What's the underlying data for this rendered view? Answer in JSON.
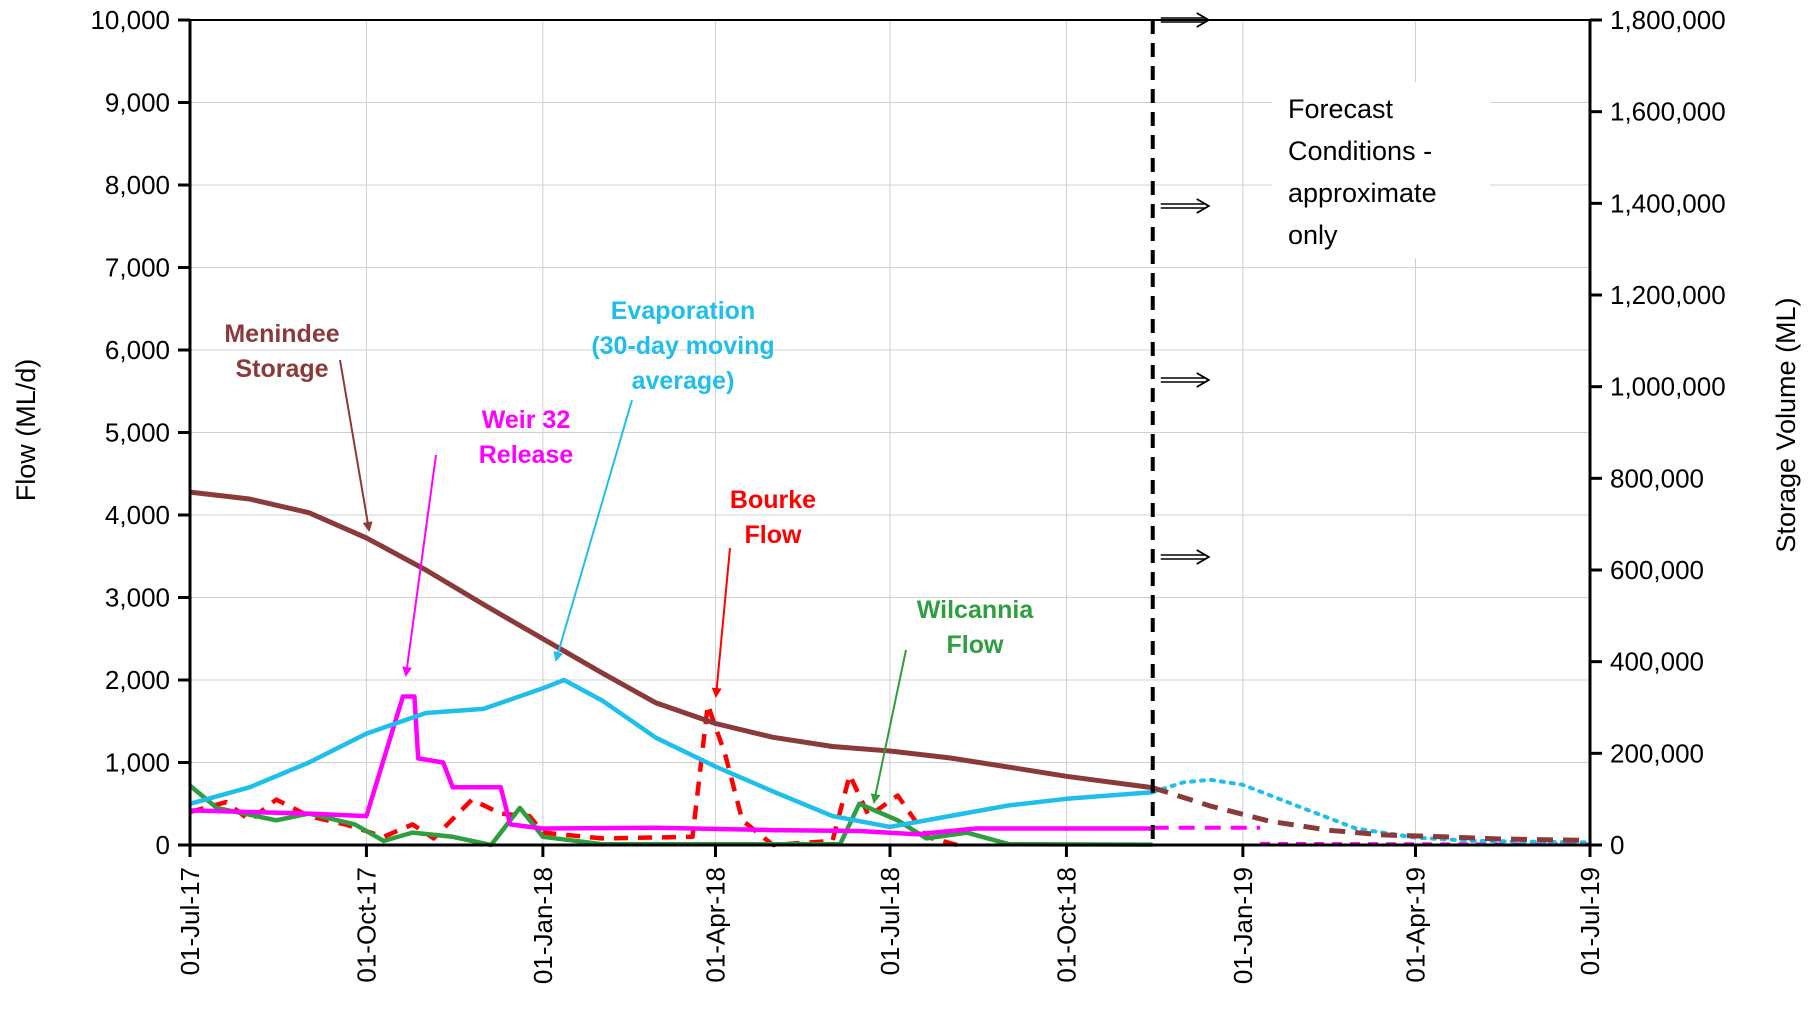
{
  "chart_data": {
    "type": "line",
    "ylabel": "Flow (ML/d)",
    "y2label": "Storage Volume (ML)",
    "ylim": [
      0,
      10000
    ],
    "y2lim": [
      0,
      1800000
    ],
    "xlim": [
      "2017-07-01",
      "2019-07-01"
    ],
    "y_ticks": [
      "0",
      "1,000",
      "2,000",
      "3,000",
      "4,000",
      "5,000",
      "6,000",
      "7,000",
      "8,000",
      "9,000",
      "10,000"
    ],
    "y2_ticks": [
      "0",
      "200,000",
      "400,000",
      "600,000",
      "800,000",
      "1,000,000",
      "1,200,000",
      "1,400,000",
      "1,600,000",
      "1,800,000"
    ],
    "x_ticks": [
      {
        "date": "2017-07-01",
        "label": "01-Jul-17"
      },
      {
        "date": "2017-10-01",
        "label": "01-Oct-17"
      },
      {
        "date": "2018-01-01",
        "label": "01-Jan-18"
      },
      {
        "date": "2018-04-01",
        "label": "01-Apr-18"
      },
      {
        "date": "2018-07-01",
        "label": "01-Jul-18"
      },
      {
        "date": "2018-10-01",
        "label": "01-Oct-18"
      },
      {
        "date": "2019-01-01",
        "label": "01-Jan-19"
      },
      {
        "date": "2019-04-01",
        "label": "01-Apr-19"
      },
      {
        "date": "2019-07-01",
        "label": "01-Jul-19"
      }
    ],
    "grid": true,
    "forecast_start": "2018-11-15",
    "forecast_note_lines": [
      "Forecast",
      "Conditions -",
      "approximate",
      "only"
    ],
    "series": [
      {
        "name": "Menindee Storage",
        "label_lines": [
          "Menindee",
          "Storage"
        ],
        "axis": "right",
        "color": "#8B3A3A",
        "points": [
          [
            "2017-07-01",
            770000
          ],
          [
            "2017-08-01",
            755000
          ],
          [
            "2017-09-01",
            725000
          ],
          [
            "2017-10-01",
            670000
          ],
          [
            "2017-11-01",
            600000
          ],
          [
            "2017-12-01",
            525000
          ],
          [
            "2018-01-01",
            450000
          ],
          [
            "2018-02-01",
            375000
          ],
          [
            "2018-03-01",
            310000
          ],
          [
            "2018-04-01",
            265000
          ],
          [
            "2018-05-01",
            235000
          ],
          [
            "2018-06-01",
            215000
          ],
          [
            "2018-07-01",
            205000
          ],
          [
            "2018-08-01",
            190000
          ],
          [
            "2018-09-01",
            170000
          ],
          [
            "2018-10-01",
            150000
          ],
          [
            "2018-11-15",
            125000
          ]
        ],
        "forecast": [
          [
            "2018-11-15",
            125000
          ],
          [
            "2018-12-15",
            85000
          ],
          [
            "2019-01-15",
            52000
          ],
          [
            "2019-02-15",
            32000
          ],
          [
            "2019-03-15",
            22000
          ],
          [
            "2019-04-15",
            18000
          ],
          [
            "2019-05-15",
            13000
          ],
          [
            "2019-07-01",
            10000
          ]
        ]
      },
      {
        "name": "Evaporation (30-day moving average)",
        "label_lines": [
          "Evaporation",
          "(30-day moving",
          "average)"
        ],
        "axis": "left",
        "color": "#1FBEEB",
        "points": [
          [
            "2017-07-01",
            500
          ],
          [
            "2017-08-01",
            700
          ],
          [
            "2017-09-01",
            1000
          ],
          [
            "2017-10-01",
            1350
          ],
          [
            "2017-11-01",
            1600
          ],
          [
            "2017-12-01",
            1650
          ],
          [
            "2018-01-01",
            1900
          ],
          [
            "2018-01-12",
            2000
          ],
          [
            "2018-02-01",
            1750
          ],
          [
            "2018-03-01",
            1300
          ],
          [
            "2018-04-01",
            950
          ],
          [
            "2018-05-01",
            650
          ],
          [
            "2018-06-01",
            350
          ],
          [
            "2018-07-01",
            220
          ],
          [
            "2018-08-01",
            350
          ],
          [
            "2018-09-01",
            480
          ],
          [
            "2018-10-01",
            560
          ],
          [
            "2018-11-15",
            640
          ]
        ],
        "forecast": [
          [
            "2018-11-15",
            640
          ],
          [
            "2018-12-01",
            760
          ],
          [
            "2018-12-15",
            790
          ],
          [
            "2019-01-01",
            730
          ],
          [
            "2019-02-01",
            450
          ],
          [
            "2019-03-01",
            200
          ],
          [
            "2019-04-01",
            90
          ],
          [
            "2019-05-01",
            50
          ],
          [
            "2019-07-01",
            30
          ]
        ]
      },
      {
        "name": "Weir 32 Release",
        "label_lines": [
          "Weir 32",
          "Release"
        ],
        "axis": "left",
        "color": "#FF00FF",
        "points": [
          [
            "2017-07-01",
            420
          ],
          [
            "2017-08-01",
            400
          ],
          [
            "2017-09-01",
            380
          ],
          [
            "2017-10-01",
            350
          ],
          [
            "2017-10-20",
            1800
          ],
          [
            "2017-10-26",
            1800
          ],
          [
            "2017-10-28",
            1050
          ],
          [
            "2017-11-10",
            1000
          ],
          [
            "2017-11-15",
            700
          ],
          [
            "2017-12-10",
            700
          ],
          [
            "2017-12-15",
            250
          ],
          [
            "2018-01-01",
            200
          ],
          [
            "2018-03-01",
            210
          ],
          [
            "2018-05-01",
            180
          ],
          [
            "2018-06-15",
            170
          ],
          [
            "2018-07-15",
            130
          ],
          [
            "2018-08-15",
            200
          ],
          [
            "2018-11-15",
            200
          ]
        ],
        "forecast": [
          [
            "2018-11-15",
            210
          ],
          [
            "2019-01-10",
            210
          ]
        ],
        "forecast2": [
          [
            "2019-01-10",
            20
          ],
          [
            "2019-07-01",
            10
          ]
        ]
      },
      {
        "name": "Bourke Flow",
        "label_lines": [
          "Bourke",
          "Flow"
        ],
        "axis": "left",
        "color": "#FF0000",
        "points": [
          [
            "2017-07-01",
            400
          ],
          [
            "2017-07-20",
            520
          ],
          [
            "2017-08-01",
            300
          ],
          [
            "2017-08-15",
            550
          ],
          [
            "2017-09-01",
            350
          ],
          [
            "2017-09-20",
            250
          ],
          [
            "2017-10-10",
            100
          ],
          [
            "2017-10-25",
            250
          ],
          [
            "2017-11-05",
            80
          ],
          [
            "2017-11-25",
            550
          ],
          [
            "2017-12-10",
            380
          ],
          [
            "2017-12-25",
            350
          ],
          [
            "2018-01-01",
            150
          ],
          [
            "2018-02-01",
            80
          ],
          [
            "2018-03-20",
            100
          ],
          [
            "2018-03-28",
            1700
          ],
          [
            "2018-04-06",
            1100
          ],
          [
            "2018-04-15",
            300
          ],
          [
            "2018-05-01",
            0
          ],
          [
            "2018-06-01",
            50
          ],
          [
            "2018-06-10",
            850
          ],
          [
            "2018-06-20",
            350
          ],
          [
            "2018-07-05",
            600
          ],
          [
            "2018-07-20",
            100
          ],
          [
            "2018-08-05",
            0
          ]
        ]
      },
      {
        "name": "Wilcannia Flow",
        "label_lines": [
          "Wilcannia",
          "Flow"
        ],
        "axis": "left",
        "color": "#2E9E3E",
        "points": [
          [
            "2017-07-01",
            720
          ],
          [
            "2017-07-15",
            450
          ],
          [
            "2017-08-15",
            300
          ],
          [
            "2017-09-01",
            380
          ],
          [
            "2017-09-25",
            250
          ],
          [
            "2017-10-10",
            50
          ],
          [
            "2017-10-25",
            150
          ],
          [
            "2017-11-15",
            100
          ],
          [
            "2017-12-05",
            0
          ],
          [
            "2017-12-20",
            450
          ],
          [
            "2018-01-01",
            100
          ],
          [
            "2018-02-01",
            10
          ],
          [
            "2018-06-05",
            10
          ],
          [
            "2018-06-15",
            500
          ],
          [
            "2018-07-05",
            300
          ],
          [
            "2018-07-20",
            80
          ],
          [
            "2018-08-10",
            150
          ],
          [
            "2018-09-01",
            10
          ],
          [
            "2018-11-15",
            5
          ]
        ]
      }
    ]
  }
}
